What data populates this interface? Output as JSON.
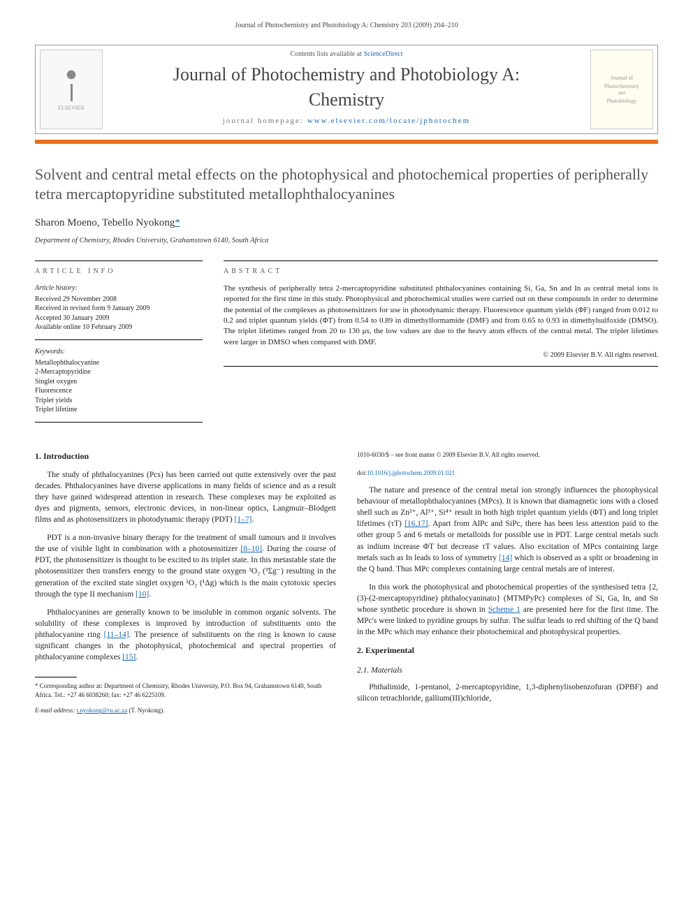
{
  "running_head": "Journal of Photochemistry and Photobiology A: Chemistry 203 (2009) 204–210",
  "masthead": {
    "contents_line_pre": "Contents lists available at ",
    "contents_link": "ScienceDirect",
    "journal_name": "Journal of Photochemistry and Photobiology A: Chemistry",
    "homepage_pre": "journal homepage: ",
    "homepage_link": "www.elsevier.com/locate/jphotochem",
    "left_logo": "ELSEVIER",
    "right_logo_top": "Journal of",
    "right_logo_mid": "Photochemistry",
    "right_logo_bot": "Photobiology"
  },
  "article": {
    "title": "Solvent and central metal effects on the photophysical and photochemical properties of peripherally tetra mercaptopyridine substituted metallophthalocyanines",
    "authors_html": "Sharon Moeno, Tebello Nyokong",
    "affiliation": "Department of Chemistry, Rhodes University, Grahamstown 6140, South Africa"
  },
  "info": {
    "head": "article info",
    "history_label": "Article history:",
    "received": "Received 29 November 2008",
    "revised": "Received in revised form 9 January 2009",
    "accepted": "Accepted 30 January 2009",
    "online": "Available online 10 February 2009",
    "keywords_label": "Keywords:",
    "keywords": [
      "Metallophthalocyanine",
      "2-Mercaptopyridine",
      "Singlet oxygen",
      "Fluorescence",
      "Triplet yields",
      "Triplet lifetime"
    ]
  },
  "abstract": {
    "head": "abstract",
    "text": "The synthesis of peripherally tetra 2-mercaptopyridine substituted phthalocyanines containing Si, Ga, Sn and In as central metal ions is reported for the first time in this study. Photophysical and photochemical studies were carried out on these compounds in order to determine the potential of the complexes as photosensitizers for use in photodynamic therapy. Fluorescence quantum yields (ΦF) ranged from 0.012 to 0.2 and triplet quantum yields (ΦT) from 0.54 to 0.89 in dimethylformamide (DMF) and from 0.65 to 0.93 in dimethylsulfoxide (DMSO). The triplet lifetimes ranged from 20 to 130 μs, the low values are due to the heavy atom effects of the central metal. The triplet lifetimes were larger in DMSO when compared with DMF.",
    "copyright": "© 2009 Elsevier B.V. All rights reserved."
  },
  "body": {
    "intro_head": "1. Introduction",
    "p1": "The study of phthalocyanines (Pcs) has been carried out quite extensively over the past decades. Phthalocyanines have diverse applications in many fields of science and as a result they have gained widespread attention in research. These complexes may be exploited as dyes and pigments, sensors, electronic devices, in non-linear optics, Langmuir–Blodgett films and as photosensitizers in photodynamic therapy (PDT) ",
    "p1_ref": "[1–7]",
    "p2a": "PDT is a non-invasive binary therapy for the treatment of small tumours and it involves the use of visible light in combination with a photosensitizer ",
    "p2_ref1": "[8–10]",
    "p2b": ". During the course of PDT, the photosensitizer is thought to be excited to its triplet state. In this metastable state the photosensitizer then transfers energy to the ground state oxygen ³O₂ (³Σg⁻) resulting in the generation of the excited state singlet oxygen ¹O₂ (¹Δg) which is the main cytotoxic species through the type II mechanism ",
    "p2_ref2": "[10]",
    "p3a": "Phthalocyanines are generally known to be insoluble in common organic solvents. The solubility of these complexes is improved by introduction of substituents onto the phthalocyanine ring ",
    "p3_ref": "[11–14]",
    "p3b": ". The presence of substituents on the ring is known to cause sig",
    "p4a": "nificant changes in the photophysical, photochemical and spectral properties of phthalocyanine complexes ",
    "p4_ref": "[15]",
    "p5a": "The nature and presence of the central metal ion strongly influences the photophysical behaviour of metallophthalocyanines (MPcs). It is known that diamagnetic ions with a closed shell such as Zn²⁺, Al³⁺, Si⁴⁺ result in both high triplet quantum yields (ΦT) and long triplet lifetimes (τT) ",
    "p5_ref1": "[16,17]",
    "p5b": ". Apart from AlPc and SiPc, there has been less attention paid to the other group 5 and 6 metals or metalloids for possible use in PDT. Large central metals such as indium increase ΦT but decrease τT values. Also excitation of MPcs containing large metals such as In leads to loss of symmetry ",
    "p5_ref2": "[14]",
    "p5c": " which is observed as a split or broadening in the Q band. Thus MPc complexes containing large central metals are of interest.",
    "p6a": "In this work the photophysical and photochemical properties of the synthesised tetra {2,(3)-(2-mercaptopyridine) phthalocyaninato} (MTMPyPc) complexes of Si, Ga, In, and Sn whose synthetic procedure is shown in ",
    "p6_ref": "Scheme 1",
    "p6b": " are presented here for the first time. The MPc's were linked to pyridine groups by sulfur. The sulfur leads to red shifting of the Q band in the MPc which may enhance their photochemical and photophysical properties.",
    "exp_head": "2. Experimental",
    "mat_head": "2.1. Materials",
    "p7": "Phthalimide, 1-pentanol, 2-mercaptopyridine, 1,3-diphenylisobenzofuran (DPBF) and silicon tetrachloride, gallium(III)chloride,"
  },
  "footnote": {
    "corr": "* Corresponding author at: Department of Chemistry, Rhodes University, P.O. Box 94, Grahamstown 6140, South Africa. Tel.: +27 46 6038260; fax: +27 46 6225109.",
    "email_label": "E-mail address: ",
    "email": "t.nyokong@ru.ac.za",
    "email_who": " (T. Nyokong)."
  },
  "doi": {
    "front_matter": "1010-6030/$ – see front matter © 2009 Elsevier B.V. All rights reserved.",
    "doi_label": "doi:",
    "doi_link": "10.1016/j.jphotochem.2009.01.021"
  },
  "colors": {
    "accent_orange": "#e9711c",
    "link_blue": "#1668b3",
    "heading_gray": "#555555"
  }
}
